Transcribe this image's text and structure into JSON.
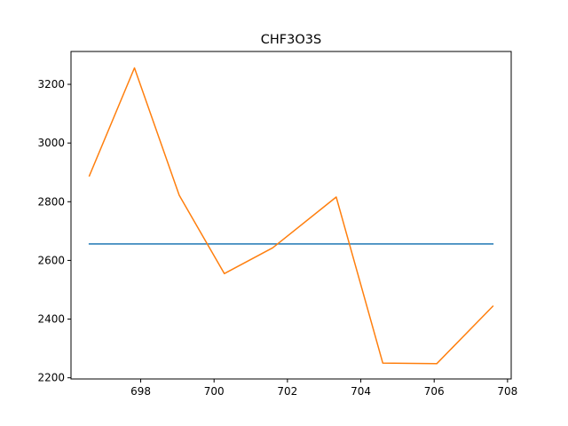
{
  "chart_data": {
    "type": "line",
    "title": "CHF3O3S",
    "xlabel": "",
    "ylabel": "",
    "xlim": [
      696.1,
      708.1
    ],
    "ylim": [
      2196,
      3312
    ],
    "x_ticks": [
      698,
      700,
      702,
      704,
      706,
      708
    ],
    "y_ticks": [
      2200,
      2400,
      2600,
      2800,
      3000,
      3200
    ],
    "grid": false,
    "legend": "none",
    "series": [
      {
        "color": "#1f77b4",
        "x": [
          696.6,
          707.6
        ],
        "y": [
          2656,
          2656
        ]
      },
      {
        "color": "#ff7f0e",
        "x": [
          696.6,
          697.83,
          699.05,
          700.28,
          701.6,
          703.33,
          704.6,
          706.07,
          707.6
        ],
        "y": [
          2888,
          3256,
          2822,
          2555,
          2643,
          2816,
          2250,
          2248,
          2444
        ]
      }
    ]
  }
}
